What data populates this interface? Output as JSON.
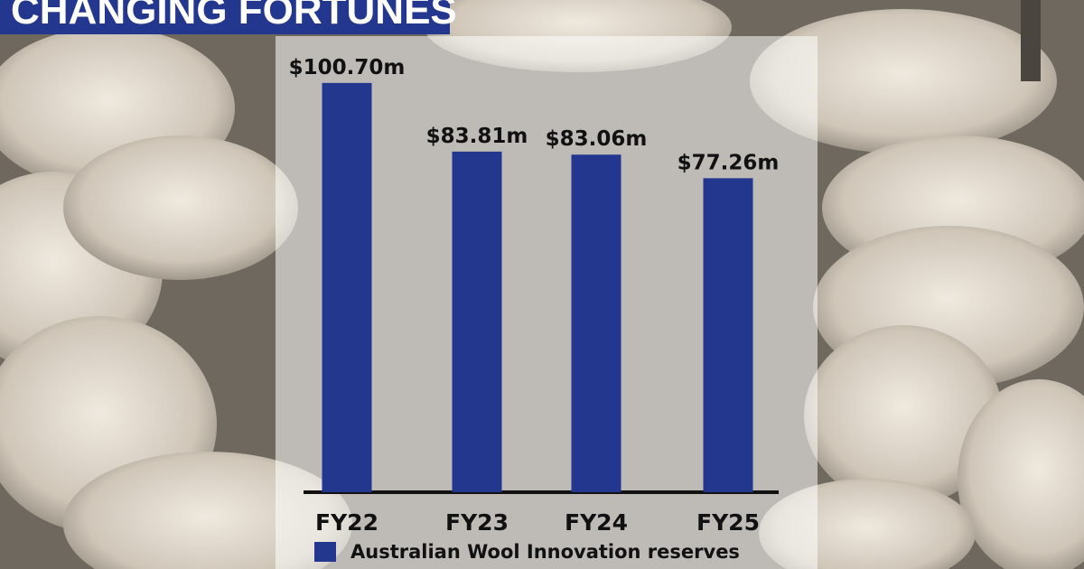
{
  "chart_data": {
    "type": "bar",
    "title": "CHANGING FORTUNES",
    "categories": [
      "FY22",
      "FY23",
      "FY24",
      "FY25"
    ],
    "series": [
      {
        "name": "Australian Wool Innovation reserves",
        "color": "#23378f",
        "values": [
          100.7,
          83.81,
          83.06,
          77.26
        ],
        "value_labels": [
          "$100.70m",
          "$83.81m",
          "$83.06m",
          "$77.26m"
        ]
      }
    ],
    "ylim": [
      0,
      110
    ]
  }
}
